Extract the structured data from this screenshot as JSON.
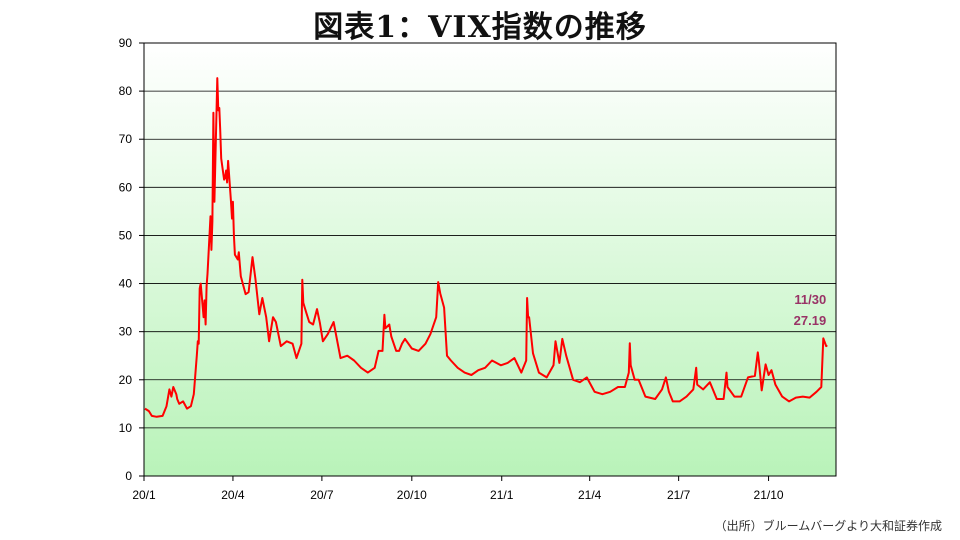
{
  "title": "図表1：VIX指数の推移",
  "source": "（出所）ブルームバーグより大和証券作成",
  "colors": {
    "line": "#ff0000",
    "plot_bg_top": "#ffffff",
    "plot_bg_bottom": "#b9f3b9",
    "annotation": "#993366",
    "grid": "#000000"
  },
  "chart_data": {
    "type": "line",
    "title": "図表1：VIX指数の推移",
    "xlabel": "",
    "ylabel": "",
    "ylim": [
      0,
      90
    ],
    "xlim": [
      "2020-01-01",
      "2021-12-09"
    ],
    "x_ticks": [
      "20/1",
      "20/4",
      "20/7",
      "20/10",
      "21/1",
      "21/4",
      "21/7",
      "21/10"
    ],
    "x_tick_dates": [
      "2020-01-01",
      "2020-04-01",
      "2020-07-01",
      "2020-10-01",
      "2021-01-01",
      "2021-04-01",
      "2021-07-01",
      "2021-10-01"
    ],
    "y_ticks": [
      0,
      10,
      20,
      30,
      40,
      50,
      60,
      70,
      80,
      90
    ],
    "grid": true,
    "series": [
      {
        "x": [
          "2020-01-02",
          "2020-01-06",
          "2020-01-09",
          "2020-01-14",
          "2020-01-20",
          "2020-01-24",
          "2020-01-27",
          "2020-01-29",
          "2020-01-31",
          "2020-02-03",
          "2020-02-04",
          "2020-02-06",
          "2020-02-10",
          "2020-02-14",
          "2020-02-18",
          "2020-02-21",
          "2020-02-24",
          "2020-02-25",
          "2020-02-26",
          "2020-02-27",
          "2020-02-28",
          "2020-03-02",
          "2020-03-03",
          "2020-03-04",
          "2020-03-05",
          "2020-03-06",
          "2020-03-09",
          "2020-03-10",
          "2020-03-11",
          "2020-03-12",
          "2020-03-13",
          "2020-03-16",
          "2020-03-17",
          "2020-03-18",
          "2020-03-19",
          "2020-03-20",
          "2020-03-23",
          "2020-03-24",
          "2020-03-25",
          "2020-03-26",
          "2020-03-27",
          "2020-03-30",
          "2020-03-31",
          "2020-04-01",
          "2020-04-02",
          "2020-04-03",
          "2020-04-06",
          "2020-04-07",
          "2020-04-09",
          "2020-04-14",
          "2020-04-17",
          "2020-04-21",
          "2020-04-24",
          "2020-04-28",
          "2020-05-01",
          "2020-05-05",
          "2020-05-08",
          "2020-05-12",
          "2020-05-15",
          "2020-05-20",
          "2020-05-26",
          "2020-06-01",
          "2020-06-05",
          "2020-06-10",
          "2020-06-11",
          "2020-06-12",
          "2020-06-15",
          "2020-06-18",
          "2020-06-22",
          "2020-06-26",
          "2020-06-29",
          "2020-07-02",
          "2020-07-07",
          "2020-07-13",
          "2020-07-20",
          "2020-07-27",
          "2020-08-03",
          "2020-08-10",
          "2020-08-17",
          "2020-08-24",
          "2020-08-28",
          "2020-09-01",
          "2020-09-03",
          "2020-09-04",
          "2020-09-08",
          "2020-09-10",
          "2020-09-15",
          "2020-09-18",
          "2020-09-21",
          "2020-09-24",
          "2020-10-01",
          "2020-10-08",
          "2020-10-15",
          "2020-10-20",
          "2020-10-26",
          "2020-10-28",
          "2020-10-30",
          "2020-11-03",
          "2020-11-06",
          "2020-11-10",
          "2020-11-17",
          "2020-11-24",
          "2020-12-01",
          "2020-12-08",
          "2020-12-15",
          "2020-12-22",
          "2020-12-31",
          "2021-01-07",
          "2021-01-14",
          "2021-01-21",
          "2021-01-26",
          "2021-01-27",
          "2021-01-28",
          "2021-01-29",
          "2021-02-02",
          "2021-02-08",
          "2021-02-16",
          "2021-02-23",
          "2021-02-25",
          "2021-03-01",
          "2021-03-04",
          "2021-03-08",
          "2021-03-15",
          "2021-03-22",
          "2021-03-29",
          "2021-04-06",
          "2021-04-14",
          "2021-04-22",
          "2021-04-30",
          "2021-05-07",
          "2021-05-11",
          "2021-05-12",
          "2021-05-13",
          "2021-05-17",
          "2021-05-21",
          "2021-05-28",
          "2021-06-07",
          "2021-06-14",
          "2021-06-18",
          "2021-06-21",
          "2021-06-25",
          "2021-07-02",
          "2021-07-09",
          "2021-07-16",
          "2021-07-19",
          "2021-07-20",
          "2021-07-26",
          "2021-08-02",
          "2021-08-09",
          "2021-08-16",
          "2021-08-19",
          "2021-08-20",
          "2021-08-27",
          "2021-09-03",
          "2021-09-10",
          "2021-09-17",
          "2021-09-20",
          "2021-09-21",
          "2021-09-24",
          "2021-09-28",
          "2021-10-01",
          "2021-10-04",
          "2021-10-08",
          "2021-10-15",
          "2021-10-22",
          "2021-10-29",
          "2021-11-05",
          "2021-11-12",
          "2021-11-19",
          "2021-11-24",
          "2021-11-26",
          "2021-11-29",
          "2021-11-30"
        ],
        "values": [
          14.0,
          13.5,
          12.5,
          12.3,
          12.5,
          14.5,
          18.0,
          16.5,
          18.5,
          17.0,
          16.0,
          15.0,
          15.5,
          14.0,
          14.5,
          17.0,
          25.0,
          28.0,
          27.5,
          39.0,
          40.0,
          33.0,
          36.5,
          31.5,
          39.5,
          42.0,
          54.0,
          47.0,
          53.0,
          75.5,
          57.0,
          82.7,
          76.0,
          76.5,
          72.0,
          66.0,
          61.6,
          62.0,
          63.5,
          61.0,
          65.5,
          57.0,
          53.5,
          57.0,
          50.0,
          46.0,
          45.0,
          46.5,
          41.5,
          37.8,
          38.2,
          45.5,
          41.0,
          33.6,
          37.0,
          33.0,
          28.0,
          33.0,
          32.0,
          27.0,
          28.0,
          27.5,
          24.5,
          27.5,
          40.8,
          36.0,
          34.0,
          32.0,
          31.5,
          34.7,
          31.8,
          28.0,
          29.5,
          32.0,
          24.5,
          25.0,
          24.0,
          22.5,
          21.5,
          22.5,
          26.0,
          26.0,
          33.5,
          30.7,
          31.5,
          29.0,
          26.0,
          26.0,
          27.5,
          28.5,
          26.5,
          26.0,
          27.5,
          29.5,
          33.0,
          40.3,
          38.0,
          35.0,
          25.0,
          24.0,
          22.5,
          21.5,
          21.0,
          22.0,
          22.5,
          24.0,
          23.0,
          23.5,
          24.5,
          21.5,
          24.0,
          37.0,
          33.0,
          33.0,
          25.5,
          21.5,
          20.5,
          23.0,
          28.0,
          23.5,
          28.5,
          25.0,
          20.0,
          19.5,
          20.5,
          17.5,
          17.0,
          17.5,
          18.5,
          18.5,
          21.5,
          27.6,
          23.0,
          20.0,
          20.0,
          16.5,
          16.0,
          18.0,
          20.5,
          17.5,
          15.5,
          15.5,
          16.5,
          18.0,
          22.5,
          19.0,
          18.0,
          19.5,
          16.0,
          16.0,
          21.5,
          18.5,
          16.5,
          16.5,
          20.5,
          20.8,
          25.7,
          24.0,
          17.8,
          23.2,
          21.0,
          22.0,
          19.0,
          16.5,
          15.5,
          16.3,
          16.5,
          16.3,
          17.5,
          18.5,
          28.6,
          27.0,
          27.19
        ]
      }
    ],
    "annotations": [
      {
        "text": "11/30",
        "x": "2021-11-30"
      },
      {
        "text": "27.19",
        "x": "2021-11-30"
      }
    ]
  }
}
